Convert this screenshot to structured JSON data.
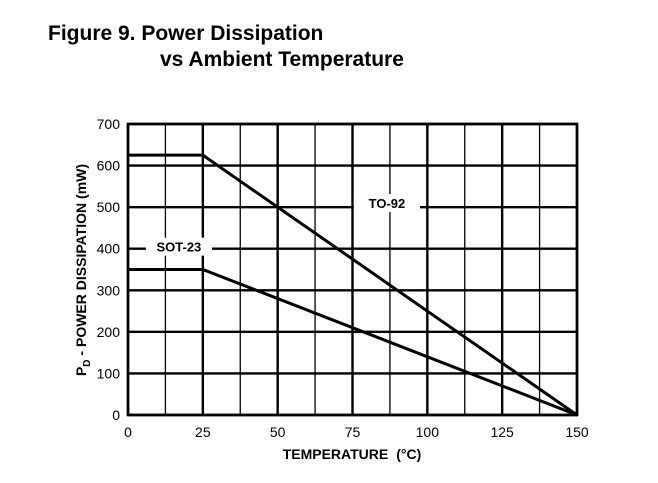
{
  "figure": {
    "title_line1": "Figure 9. Power Dissipation",
    "title_line2": "vs Ambient Temperature"
  },
  "chart_data": {
    "type": "line",
    "xlabel": "TEMPERATURE",
    "xlabel_unit": "(°C)",
    "ylabel_sub": "D",
    "ylabel_rest": " - POWER DISSIPATION (mW)",
    "ylabel_main": "P",
    "xlim": [
      0,
      150
    ],
    "ylim": [
      0,
      700
    ],
    "x_ticks": [
      0,
      25,
      50,
      75,
      100,
      125,
      150
    ],
    "y_ticks": [
      0,
      100,
      200,
      300,
      400,
      500,
      600,
      700
    ],
    "grid": true,
    "series": [
      {
        "name": "TO-92",
        "x": [
          0,
          25,
          150
        ],
        "y": [
          625,
          625,
          0
        ]
      },
      {
        "name": "SOT-23",
        "x": [
          0,
          25,
          150
        ],
        "y": [
          350,
          350,
          0
        ]
      }
    ]
  }
}
